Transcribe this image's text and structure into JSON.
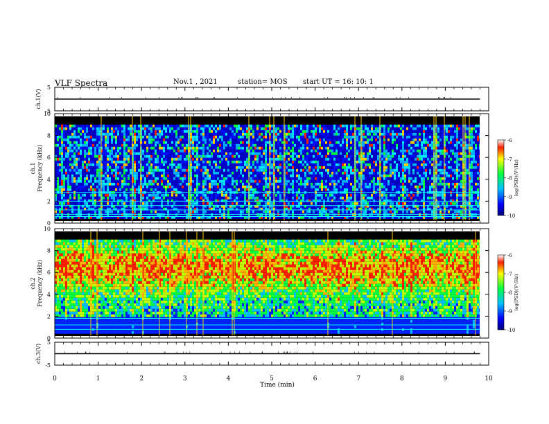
{
  "header": {
    "title": "VLF Spectra",
    "date": "Nov.1 , 2021",
    "station": "station= MOS",
    "start": "start UT = 16: 10: 1"
  },
  "chart_data": [
    {
      "type": "line",
      "panel": "ch1-waveform",
      "ylabel": "ch.1(V)",
      "ylim": [
        -5,
        5
      ],
      "yticks": [
        "5",
        "-5"
      ],
      "x": [
        0,
        9.8
      ],
      "values": [
        0,
        0
      ]
    },
    {
      "type": "heatmap",
      "panel": "ch1-spectrogram",
      "ylabel": "ch.1 Frequency (kHz)",
      "ylim": [
        0,
        10
      ],
      "yticks": [
        "0",
        "2",
        "4",
        "6",
        "8",
        "10"
      ],
      "colorbar": {
        "label": "log(PSD)(V²/Hz)",
        "range": [
          -10,
          -6
        ],
        "ticks": [
          "-6",
          "-7",
          "-8",
          "-9",
          "-10"
        ]
      }
    },
    {
      "type": "heatmap",
      "panel": "ch2-spectrogram",
      "ylabel": "ch.2 Frequency (kHz)",
      "ylim": [
        0,
        10
      ],
      "yticks": [
        "0",
        "2",
        "4",
        "6",
        "8",
        "10"
      ],
      "colorbar": {
        "label": "log(PSD)(V²/Hz)",
        "range": [
          -10,
          -6
        ],
        "ticks": [
          "-6",
          "-7",
          "-8",
          "-9",
          "-10"
        ]
      }
    },
    {
      "type": "line",
      "panel": "ch3-waveform",
      "ylabel": "ch.3(V)",
      "ylim": [
        -5,
        5
      ],
      "yticks": [
        "5",
        "-5"
      ],
      "x": [
        0,
        9.8
      ],
      "values": [
        0,
        0
      ]
    }
  ],
  "xaxis": {
    "label": "Time (min)",
    "range": [
      0,
      10
    ],
    "ticks": [
      "0",
      "1",
      "2",
      "3",
      "4",
      "5",
      "6",
      "7",
      "8",
      "9",
      "10"
    ]
  },
  "colors": {
    "background": "#000000",
    "noise": "#0000c8",
    "mid": "#00e0ff",
    "high": "#00ff30",
    "peak": "#ff2000"
  }
}
